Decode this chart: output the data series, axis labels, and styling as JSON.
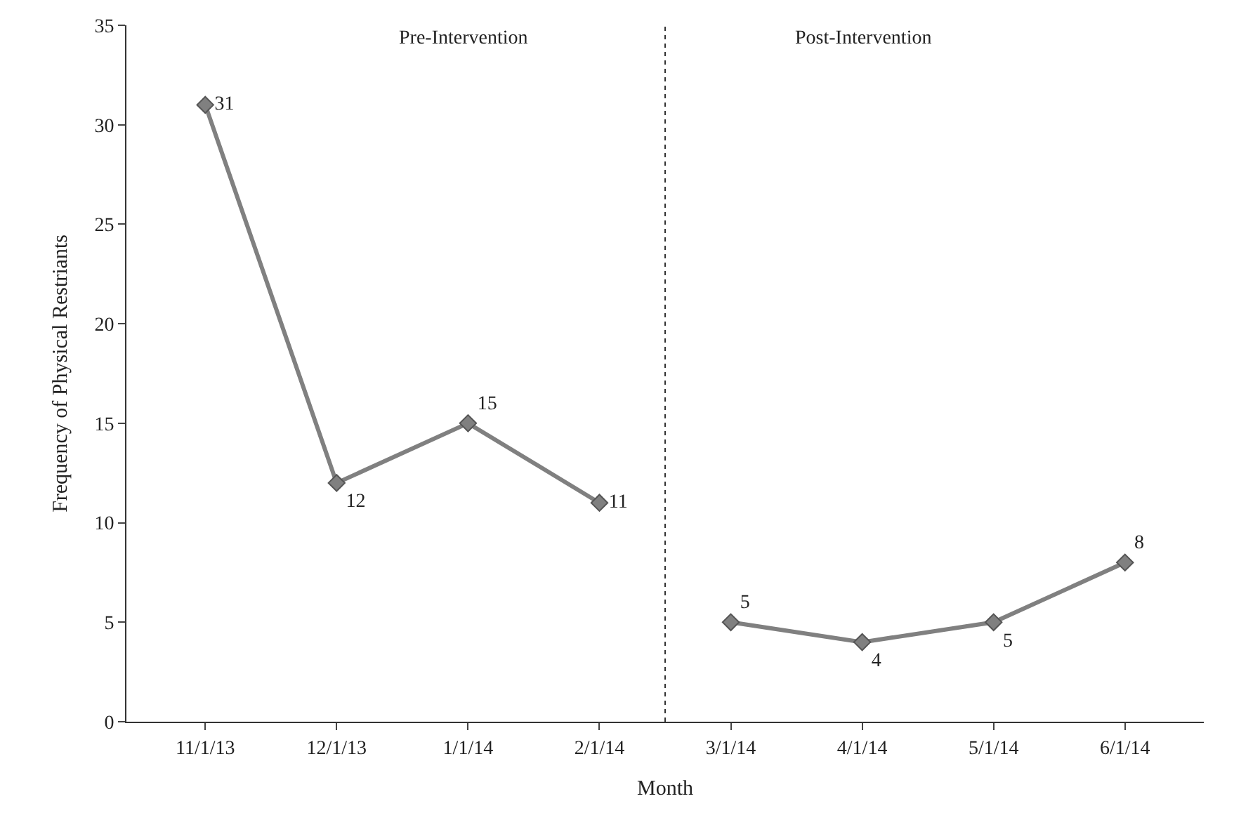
{
  "chart_data": {
    "type": "line",
    "xlabel": "Month",
    "ylabel": "Frequency of Physical Restriants",
    "categories": [
      "11/1/13",
      "12/1/13",
      "1/1/14",
      "2/1/14",
      "3/1/14",
      "4/1/14",
      "5/1/14",
      "6/1/14"
    ],
    "series": [
      {
        "color": "#808080",
        "values": [
          31,
          12,
          15,
          11,
          null,
          null,
          null,
          null
        ]
      },
      {
        "color": "#808080",
        "values": [
          null,
          null,
          null,
          null,
          5,
          4,
          5,
          8
        ]
      }
    ],
    "ylim": [
      0,
      35
    ],
    "yticks": [
      0,
      5,
      10,
      15,
      20,
      25,
      30,
      35
    ],
    "annotations": [
      "Pre-Intervention",
      "Post-Intervention"
    ],
    "data_labels": true,
    "marker": "diamond",
    "line_style": "solid",
    "legend": false
  }
}
